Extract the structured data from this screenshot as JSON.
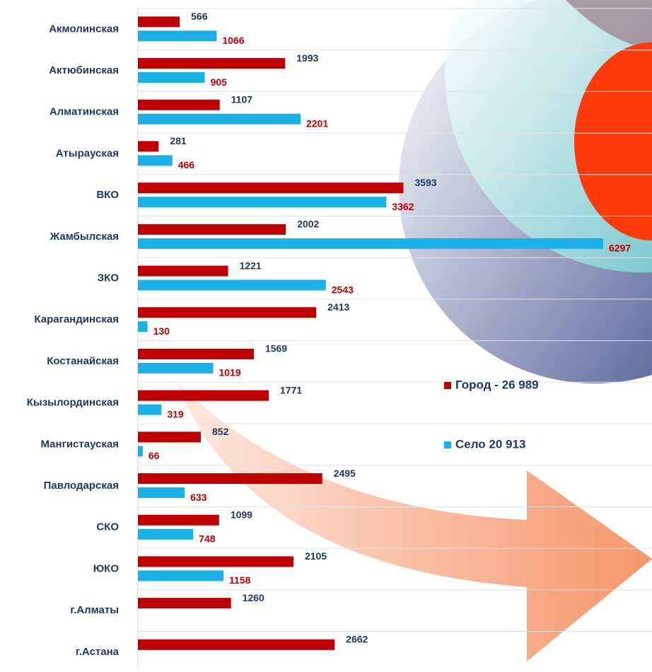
{
  "chart_data": {
    "type": "hbar",
    "categories": [
      "Акмолинская",
      "Актюбинская",
      "Алматинская",
      "Атырауская",
      "ВКО",
      "Жамбылская",
      "ЗКО",
      "Карагандинская",
      "Костанайская",
      "Кызылординская",
      "Мангистауская",
      "Павлодарская",
      "СКО",
      "ЮКО",
      "г.Алматы",
      "г.Астана"
    ],
    "series": [
      {
        "name": "Город - 26 989",
        "color": "#c00000",
        "values": [
          566,
          1993,
          1107,
          281,
          3593,
          2002,
          1221,
          2413,
          1569,
          1771,
          852,
          2495,
          1099,
          2105,
          1260,
          2662
        ]
      },
      {
        "name": "Село 20 913",
        "color": "#1ab0e8",
        "values": [
          1066,
          905,
          2201,
          466,
          3362,
          6297,
          2543,
          130,
          1019,
          319,
          66,
          633,
          748,
          1158,
          null,
          null
        ]
      }
    ],
    "xlim": [
      0,
      6900
    ],
    "grid": true,
    "legend": "right"
  }
}
